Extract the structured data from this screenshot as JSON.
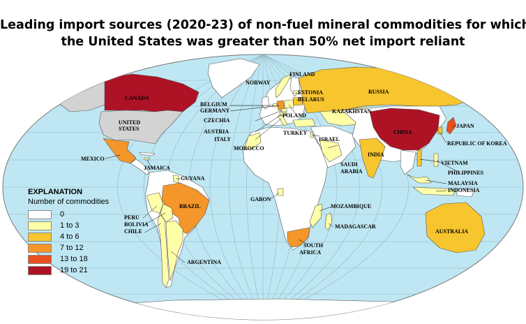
{
  "title": {
    "line1": "Leading import sources (2020-23) of non-fuel mineral commodities for which",
    "line2": "the United States was greater than 50% net import reliant"
  },
  "legend": {
    "title": "EXPLANATION",
    "subtitle": "Number of commodities",
    "items": [
      {
        "label": "0",
        "color": "#ffffff"
      },
      {
        "label": "1 to 3",
        "color": "#ffffa8"
      },
      {
        "label": "4 to 6",
        "color": "#f7c52e"
      },
      {
        "label": "7 to 12",
        "color": "#f4962a"
      },
      {
        "label": "13 to 18",
        "color": "#e8501e"
      },
      {
        "label": "19 to 21",
        "color": "#ad1325"
      }
    ]
  },
  "colors": {
    "ocean": "#bfe7f3",
    "land_default": "#ffffff",
    "us_land": "#d3d3d3",
    "border": "#555555"
  },
  "countries": {
    "canada": "CANADA",
    "united_states_l1": "UNITED",
    "united_states_l2": "STATES",
    "mexico": "MEXICO",
    "jamaica": "JAMAICA",
    "guyana": "GUYANA",
    "brazil": "BRAZIL",
    "peru": "PERU",
    "bolivia": "BOLIVIA",
    "chile": "CHILE",
    "argentina": "ARGENTINA",
    "norway": "NORWAY",
    "finland": "FINLAND",
    "estonia": "ESTONIA",
    "belarus": "BELARUS",
    "belgium": "BELGIUM",
    "germany": "GERMANY",
    "czechia": "CZECHIA",
    "austria": "AUSTRIA",
    "italy": "ITALY",
    "poland": "POLAND",
    "turkey": "TURKEY",
    "israel": "ISRAEL",
    "morocco": "MOROCCO",
    "gabon": "GABON",
    "saudi_l1": "SAUDI",
    "saudi_l2": "ARABIA",
    "mozambique": "MOZAMBIQUE",
    "madagascar": "MADAGASCAR",
    "south_africa_l1": "SOUTH",
    "south_africa_l2": "AFRICA",
    "russia": "RUSSIA",
    "kazakhstan": "KAZAKHSTAN",
    "china": "CHINA",
    "india": "INDIA",
    "japan": "JAPAN",
    "korea": "REPUBLIC OF KOREA",
    "vietnam": "VIETNAM",
    "philippines": "PHILIPPINES",
    "malaysia": "MALAYSIA",
    "indonesia": "INDONESIA",
    "australia": "AUSTRALIA"
  }
}
